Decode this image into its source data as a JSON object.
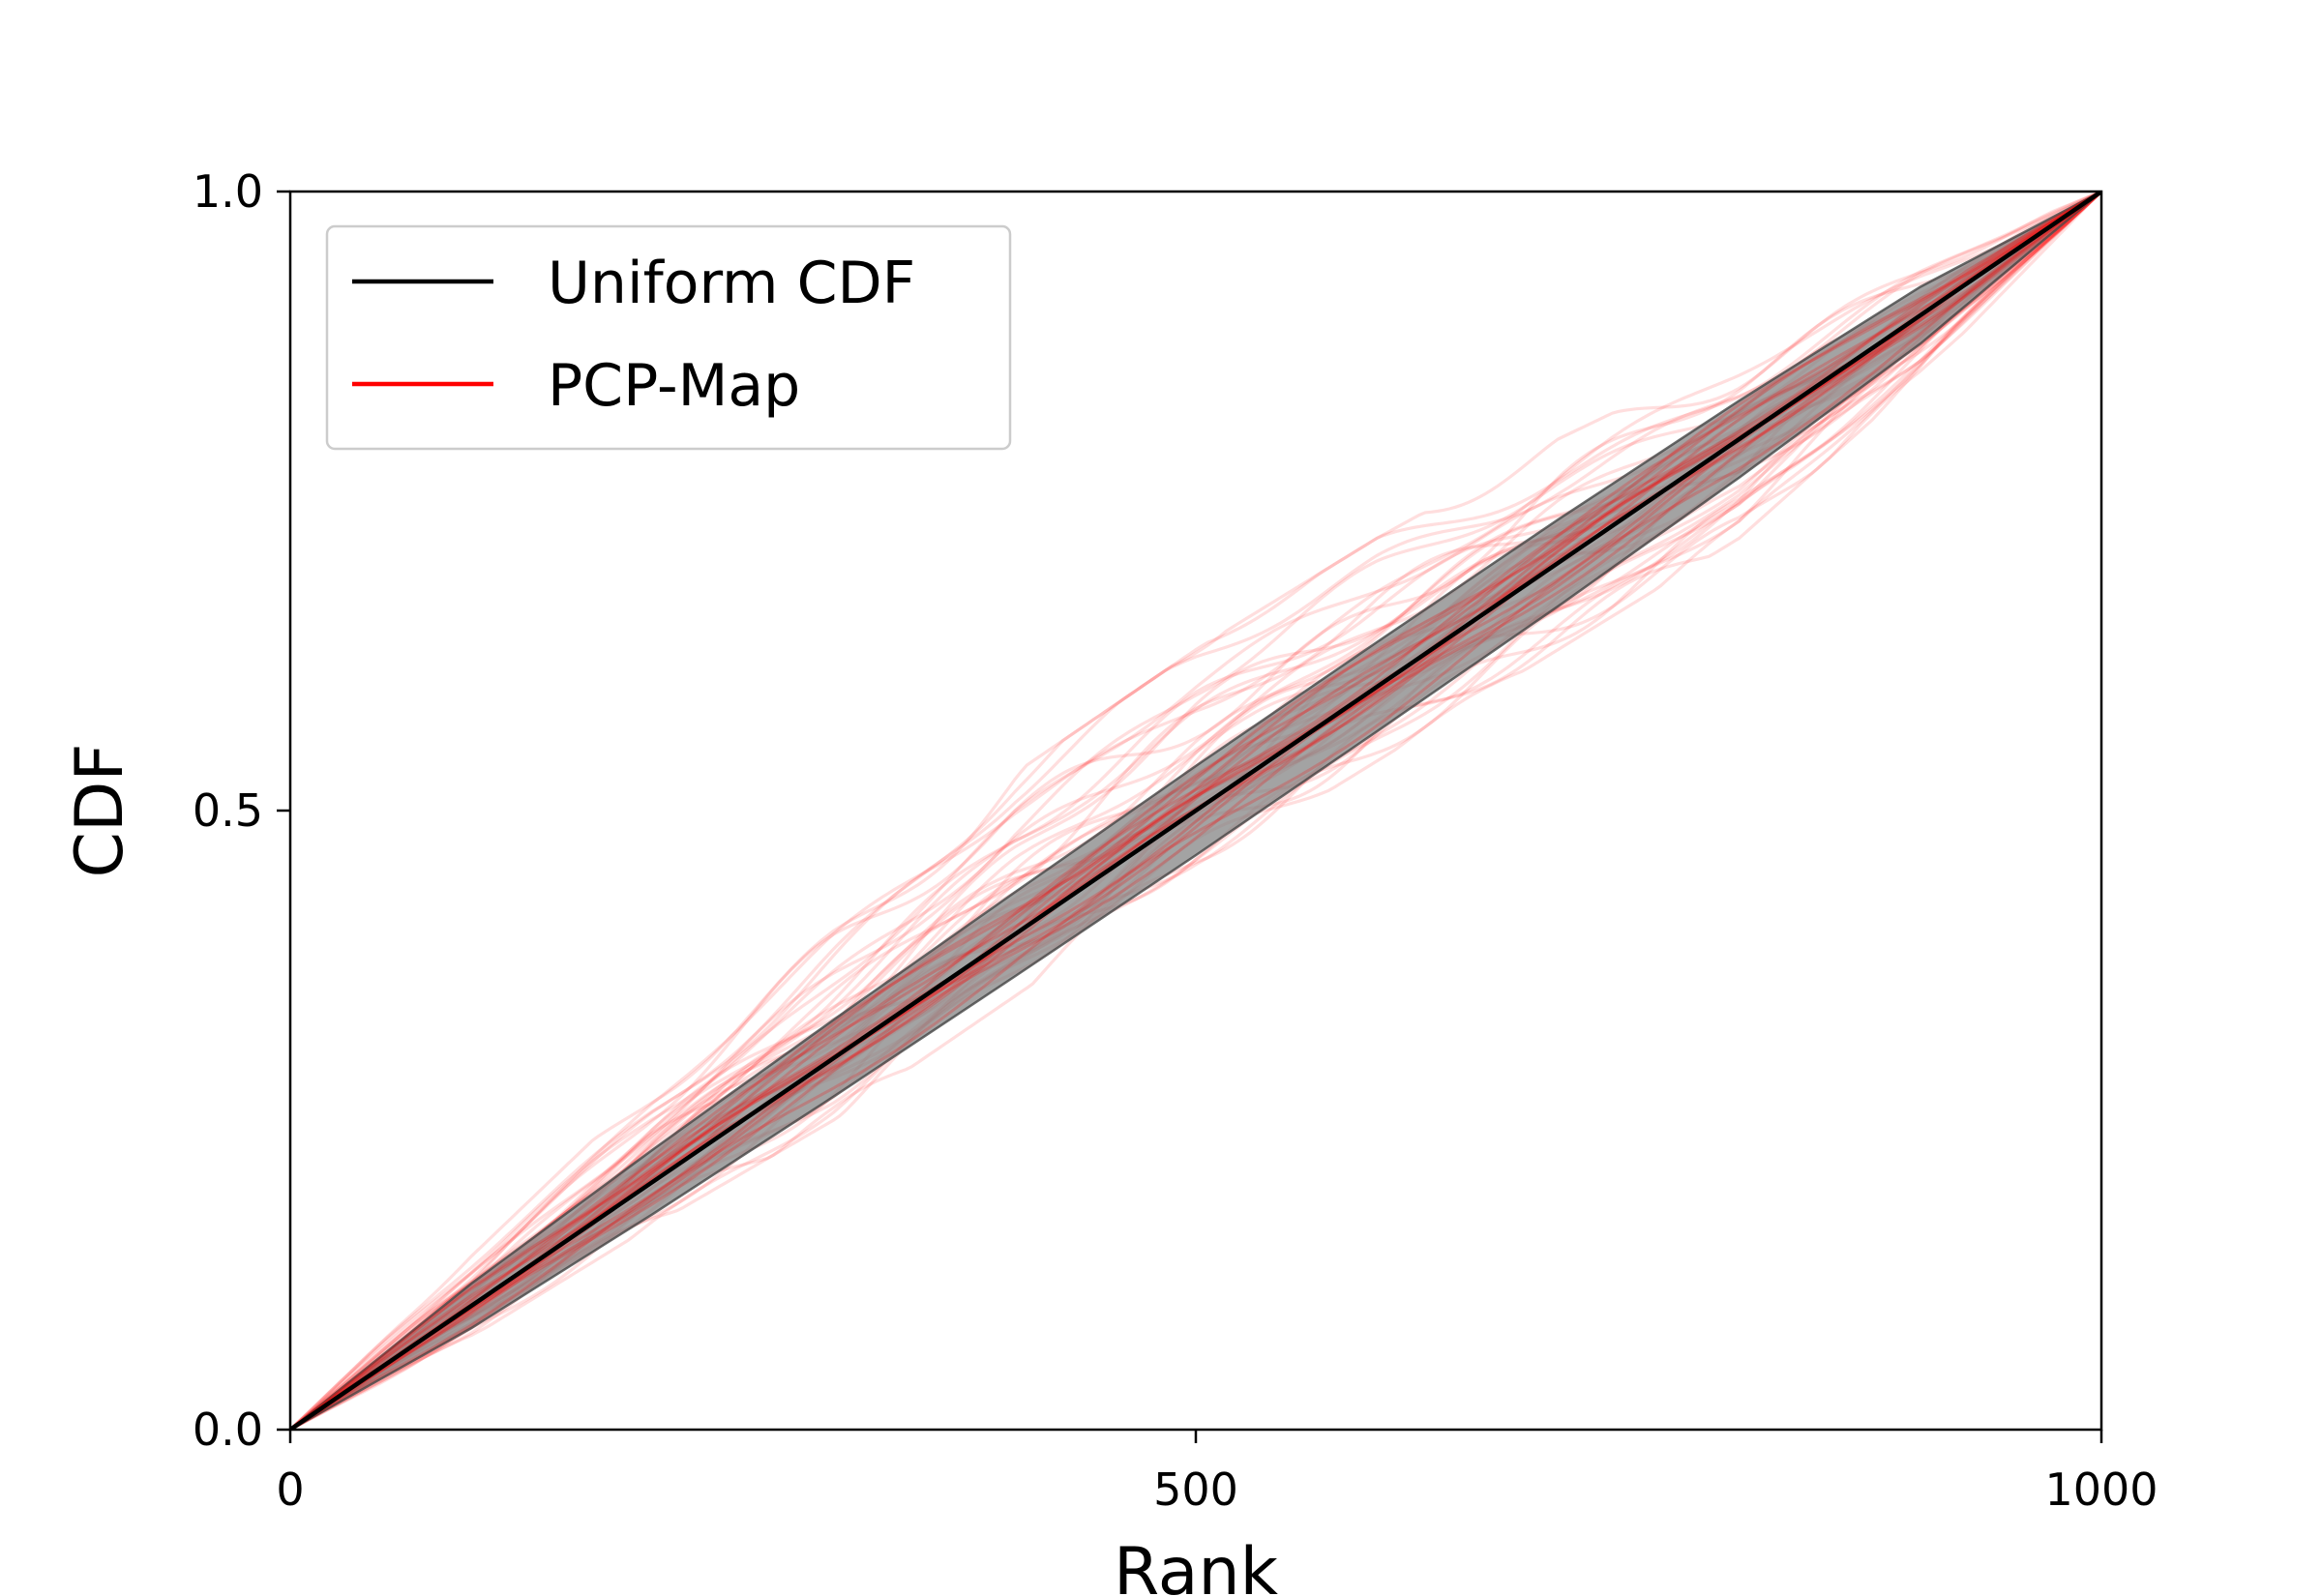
{
  "chart_data": {
    "type": "line",
    "xlabel": "Rank",
    "ylabel": "CDF",
    "xlim": [
      0,
      1000
    ],
    "ylim": [
      0,
      1.0
    ],
    "x_ticks": [
      "0",
      "500",
      "1000"
    ],
    "y_ticks": [
      "0.0",
      "0.5",
      "1.0"
    ],
    "grid": false,
    "legend_position": "top-left",
    "reference": {
      "name": "Uniform CDF",
      "color": "#000000",
      "x": [
        0,
        1000
      ],
      "y": [
        0,
        1.0
      ],
      "confidence_band": {
        "color": "#808080",
        "x": [
          0,
          100,
          200,
          300,
          400,
          500,
          600,
          700,
          800,
          900,
          1000
        ],
        "lower": [
          0,
          0.082,
          0.174,
          0.269,
          0.366,
          0.464,
          0.564,
          0.665,
          0.769,
          0.877,
          1.0
        ],
        "upper": [
          0,
          0.118,
          0.226,
          0.331,
          0.434,
          0.536,
          0.636,
          0.735,
          0.831,
          0.923,
          1.0
        ]
      }
    },
    "ensemble": {
      "name": "PCP-Map",
      "color": "#ff0000",
      "count": 40,
      "x": [
        0,
        100,
        200,
        300,
        400,
        500,
        600,
        700,
        800,
        900,
        1000
      ],
      "upper_envelope": [
        0,
        0.14,
        0.28,
        0.41,
        0.53,
        0.63,
        0.72,
        0.8,
        0.87,
        0.94,
        1.0
      ],
      "lower_envelope": [
        0,
        0.075,
        0.165,
        0.25,
        0.35,
        0.45,
        0.54,
        0.63,
        0.72,
        0.85,
        1.0
      ]
    }
  },
  "legend": {
    "items": [
      {
        "label": "Uniform CDF",
        "color": "#000000"
      },
      {
        "label": "PCP-Map",
        "color": "#ff0000"
      }
    ]
  }
}
